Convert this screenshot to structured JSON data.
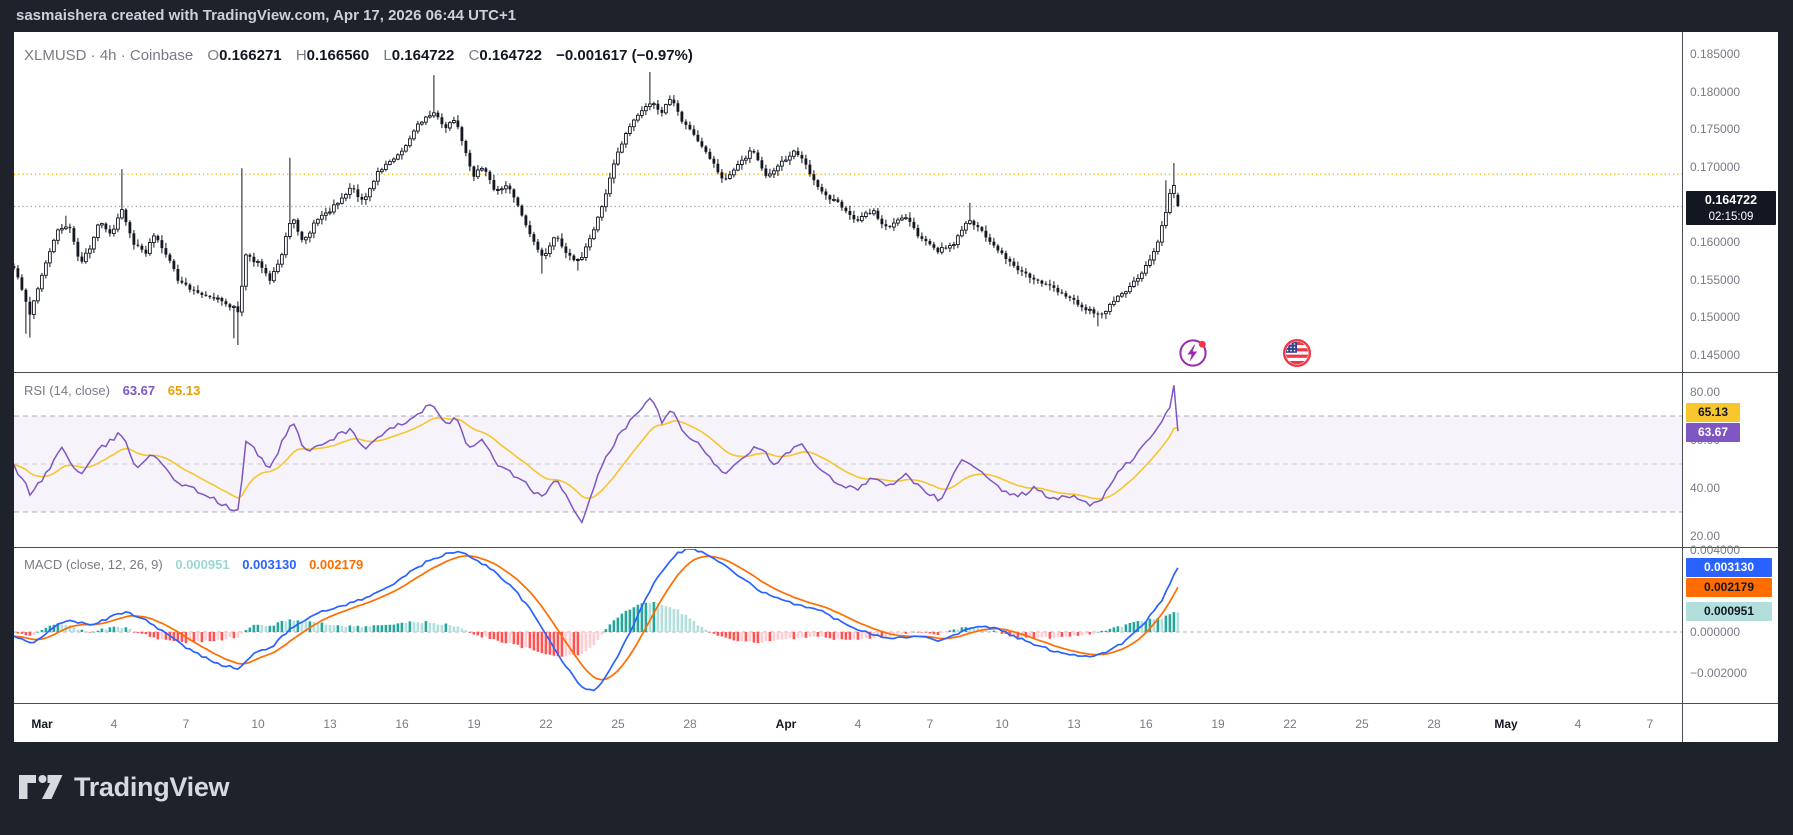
{
  "header": {
    "title": "sasmaishera created with TradingView.com, Apr 17, 2026 06:44 UTC+1"
  },
  "symbol_legend": {
    "title": "XLMUSD · 4h · Coinbase",
    "ohlc": [
      {
        "k": "O",
        "v": "0.166271"
      },
      {
        "k": "H",
        "v": "0.166560"
      },
      {
        "k": "L",
        "v": "0.164722"
      },
      {
        "k": "C",
        "v": "0.164722"
      }
    ],
    "change": "−0.001617 (−0.97%)"
  },
  "price_axis": {
    "labels": [
      {
        "t": "0.185000",
        "v": 0.185
      },
      {
        "t": "0.180000",
        "v": 0.18
      },
      {
        "t": "0.175000",
        "v": 0.175
      },
      {
        "t": "0.170000",
        "v": 0.17
      },
      {
        "t": "0.165000",
        "v": 0.165
      },
      {
        "t": "0.160000",
        "v": 0.16
      },
      {
        "t": "0.155000",
        "v": 0.155
      },
      {
        "t": "0.150000",
        "v": 0.15
      },
      {
        "t": "0.145000",
        "v": 0.145
      }
    ],
    "last_price_badge": {
      "price": "0.164722",
      "countdown": "02:15:09"
    }
  },
  "rsi": {
    "legend_name": "RSI (14, close)",
    "value": "63.67",
    "ma_value": "65.13",
    "axis": [
      {
        "t": "80.00",
        "v": 80
      },
      {
        "t": "60.00",
        "v": 60
      },
      {
        "t": "40.00",
        "v": 40
      },
      {
        "t": "20.00",
        "v": 20
      }
    ]
  },
  "macd": {
    "legend_name": "MACD (close, 12, 26, 9)",
    "hist_value": "0.000951",
    "macd_value": "0.003130",
    "signal_value": "0.002179",
    "axis": [
      {
        "t": "0.004000",
        "v": 0.004
      },
      {
        "t": "0.002000",
        "v": 0.002
      },
      {
        "t": "0.000000",
        "v": 0
      },
      {
        "t": "−0.002000",
        "v": -0.002
      }
    ]
  },
  "time_axis": {
    "ticks": [
      {
        "l": "Mar",
        "d": 0,
        "m": true
      },
      {
        "l": "4",
        "d": 3
      },
      {
        "l": "7",
        "d": 6
      },
      {
        "l": "10",
        "d": 9
      },
      {
        "l": "13",
        "d": 12
      },
      {
        "l": "16",
        "d": 15
      },
      {
        "l": "19",
        "d": 18
      },
      {
        "l": "22",
        "d": 21
      },
      {
        "l": "25",
        "d": 24
      },
      {
        "l": "28",
        "d": 27
      },
      {
        "l": "Apr",
        "d": 31,
        "m": true
      },
      {
        "l": "4",
        "d": 34
      },
      {
        "l": "7",
        "d": 37
      },
      {
        "l": "10",
        "d": 40
      },
      {
        "l": "13",
        "d": 43
      },
      {
        "l": "16",
        "d": 46
      },
      {
        "l": "19",
        "d": 49
      },
      {
        "l": "22",
        "d": 52
      },
      {
        "l": "25",
        "d": 55
      },
      {
        "l": "28",
        "d": 58
      },
      {
        "l": "May",
        "d": 61,
        "m": true
      },
      {
        "l": "4",
        "d": 64
      },
      {
        "l": "7",
        "d": 67
      }
    ]
  },
  "footer": {
    "brand": "TradingView"
  },
  "colors": {
    "frame_bg": "#1e222b",
    "panel_bg": "#ffffff",
    "divider": "#4a4e57",
    "text_gray": "#787b86",
    "text_dark": "#131722",
    "candle_up_fill": "#ffffff",
    "candle_down_fill": "#131722",
    "candle_stroke": "#131722",
    "rsi_line": "#7e57c2",
    "rsi_ma_line": "#f7c52c",
    "rsi_band_fill": "#7e57c2",
    "macd_line": "#2962ff",
    "signal_line": "#ff6d00",
    "hist_grow_above": "#26a69a",
    "hist_fall_above": "#b2dfdb",
    "hist_fall_below": "#ff5252",
    "hist_grow_below": "#ffcdd2",
    "alert_line": "#f0c421",
    "current_price_line": "#9598a1",
    "badge_black": "#131722",
    "badge_yellow": "#f7c52c",
    "badge_purple": "#7e57c2",
    "badge_blue": "#2962ff",
    "badge_orange": "#ff6d00",
    "badge_teal": "#b2dfdb"
  },
  "chart_data": {
    "type": "candlestick+indicators",
    "symbol": "XLMUSD",
    "interval": "4h",
    "exchange": "Coinbase",
    "price_panel": {
      "ylim": [
        0.1426,
        0.1879
      ],
      "grid_labels": [
        0.185,
        0.18,
        0.175,
        0.17,
        0.165,
        0.16,
        0.155,
        0.15,
        0.145
      ],
      "alert_line_price": 0.169,
      "last_bar": {
        "open": 0.166271,
        "high": 0.16656,
        "low": 0.164722,
        "close": 0.164722,
        "change": -0.001617,
        "change_pct": -0.97,
        "countdown": "02:15:09"
      },
      "path_days_since_mar1_vs_close": [
        [
          -1.2,
          0.1568
        ],
        [
          -0.8,
          0.1535
        ],
        [
          -0.5,
          0.1502
        ],
        [
          -0.1,
          0.1545
        ],
        [
          0.6,
          0.1612
        ],
        [
          1.1,
          0.1625
        ],
        [
          1.6,
          0.1572
        ],
        [
          2.0,
          0.1592
        ],
        [
          2.4,
          0.1632
        ],
        [
          2.9,
          0.1605
        ],
        [
          3.3,
          0.1648
        ],
        [
          3.8,
          0.1598
        ],
        [
          4.3,
          0.1585
        ],
        [
          4.7,
          0.161
        ],
        [
          5.2,
          0.1582
        ],
        [
          5.7,
          0.1548
        ],
        [
          6.3,
          0.1536
        ],
        [
          6.9,
          0.1528
        ],
        [
          7.5,
          0.1522
        ],
        [
          8.2,
          0.1508
        ],
        [
          8.5,
          0.1582
        ],
        [
          9.0,
          0.1572
        ],
        [
          9.5,
          0.1548
        ],
        [
          10.0,
          0.1585
        ],
        [
          10.4,
          0.1635
        ],
        [
          10.9,
          0.1598
        ],
        [
          11.4,
          0.1628
        ],
        [
          12.0,
          0.1642
        ],
        [
          12.5,
          0.1658
        ],
        [
          12.9,
          0.1672
        ],
        [
          13.4,
          0.1652
        ],
        [
          14.0,
          0.1692
        ],
        [
          14.5,
          0.1706
        ],
        [
          15.0,
          0.1722
        ],
        [
          15.5,
          0.1748
        ],
        [
          16.0,
          0.1768
        ],
        [
          16.4,
          0.1772
        ],
        [
          16.8,
          0.1752
        ],
        [
          17.2,
          0.1765
        ],
        [
          17.6,
          0.1722
        ],
        [
          18.0,
          0.1688
        ],
        [
          18.4,
          0.1702
        ],
        [
          18.9,
          0.1665
        ],
        [
          19.4,
          0.1678
        ],
        [
          19.9,
          0.1642
        ],
        [
          20.4,
          0.1605
        ],
        [
          20.9,
          0.1578
        ],
        [
          21.4,
          0.1612
        ],
        [
          21.9,
          0.1582
        ],
        [
          22.4,
          0.1575
        ],
        [
          22.9,
          0.1608
        ],
        [
          23.4,
          0.1655
        ],
        [
          23.9,
          0.1712
        ],
        [
          24.4,
          0.1748
        ],
        [
          24.9,
          0.1772
        ],
        [
          25.4,
          0.1788
        ],
        [
          25.8,
          0.1772
        ],
        [
          26.2,
          0.1792
        ],
        [
          26.7,
          0.1758
        ],
        [
          27.2,
          0.1742
        ],
        [
          27.8,
          0.1712
        ],
        [
          28.4,
          0.1682
        ],
        [
          29.0,
          0.1702
        ],
        [
          29.6,
          0.1722
        ],
        [
          30.2,
          0.1688
        ],
        [
          30.8,
          0.1705
        ],
        [
          31.4,
          0.1722
        ],
        [
          32.0,
          0.1692
        ],
        [
          32.6,
          0.1662
        ],
        [
          33.2,
          0.1652
        ],
        [
          33.9,
          0.1628
        ],
        [
          34.6,
          0.1642
        ],
        [
          35.2,
          0.1618
        ],
        [
          35.9,
          0.1636
        ],
        [
          36.6,
          0.1605
        ],
        [
          37.3,
          0.1588
        ],
        [
          38.0,
          0.1598
        ],
        [
          38.6,
          0.1632
        ],
        [
          39.2,
          0.1612
        ],
        [
          39.9,
          0.1588
        ],
        [
          40.6,
          0.1562
        ],
        [
          41.3,
          0.1552
        ],
        [
          42.0,
          0.1542
        ],
        [
          42.7,
          0.1528
        ],
        [
          43.4,
          0.1512
        ],
        [
          44.1,
          0.1502
        ],
        [
          44.7,
          0.1522
        ],
        [
          45.3,
          0.1538
        ],
        [
          45.9,
          0.1562
        ],
        [
          46.4,
          0.1592
        ],
        [
          46.9,
          0.1645
        ],
        [
          47.1,
          0.1688
        ],
        [
          47.2,
          0.1665
        ],
        [
          47.333,
          0.164722
        ]
      ],
      "wick_events": [
        [
          -0.6,
          "l",
          0.1478
        ],
        [
          -0.45,
          "l",
          0.1473
        ],
        [
          1.0,
          "h",
          0.1635
        ],
        [
          3.3,
          "h",
          0.1697
        ],
        [
          8.05,
          "l",
          0.1472
        ],
        [
          8.2,
          "l",
          0.1463
        ],
        [
          8.4,
          "h",
          0.1698
        ],
        [
          10.35,
          "h",
          0.1712
        ],
        [
          16.35,
          "h",
          0.1822
        ],
        [
          20.9,
          "l",
          0.1558
        ],
        [
          22.3,
          "l",
          0.1562
        ],
        [
          25.35,
          "h",
          0.1826
        ],
        [
          38.6,
          "h",
          0.1652
        ],
        [
          44.0,
          "l",
          0.1488
        ],
        [
          46.9,
          "h",
          0.1682
        ],
        [
          47.1,
          "h",
          0.1705
        ]
      ]
    },
    "rsi_panel": {
      "length": 14,
      "source": "close",
      "current": 63.67,
      "ma_current": 65.13,
      "band": [
        30,
        70
      ],
      "grid": [
        80,
        60,
        40,
        20
      ],
      "ylim_visible": [
        14,
        87
      ],
      "path_days_vs_rsi": [
        [
          -1.2,
          50
        ],
        [
          -0.5,
          38
        ],
        [
          0.2,
          46
        ],
        [
          0.8,
          57
        ],
        [
          1.6,
          45
        ],
        [
          2.4,
          56
        ],
        [
          3.3,
          63
        ],
        [
          3.9,
          49
        ],
        [
          4.7,
          54
        ],
        [
          5.7,
          42
        ],
        [
          6.9,
          37
        ],
        [
          7.7,
          32
        ],
        [
          8.2,
          30
        ],
        [
          8.5,
          60
        ],
        [
          9.5,
          48
        ],
        [
          10.4,
          68
        ],
        [
          11.0,
          55
        ],
        [
          12.0,
          60
        ],
        [
          12.9,
          65
        ],
        [
          13.4,
          56
        ],
        [
          14.5,
          64
        ],
        [
          15.5,
          70
        ],
        [
          16.2,
          75
        ],
        [
          16.8,
          66
        ],
        [
          17.2,
          70
        ],
        [
          17.8,
          56
        ],
        [
          18.4,
          61
        ],
        [
          18.9,
          50
        ],
        [
          19.9,
          44
        ],
        [
          20.9,
          35
        ],
        [
          21.4,
          45
        ],
        [
          22.2,
          29
        ],
        [
          22.5,
          26
        ],
        [
          23.1,
          44
        ],
        [
          23.9,
          60
        ],
        [
          24.9,
          72
        ],
        [
          25.4,
          79
        ],
        [
          25.8,
          67
        ],
        [
          26.2,
          73
        ],
        [
          26.7,
          63
        ],
        [
          27.5,
          57
        ],
        [
          28.4,
          46
        ],
        [
          29.3,
          54
        ],
        [
          29.9,
          58
        ],
        [
          30.5,
          49
        ],
        [
          31.1,
          55
        ],
        [
          31.7,
          58
        ],
        [
          32.3,
          48
        ],
        [
          33.0,
          43
        ],
        [
          33.9,
          39
        ],
        [
          34.6,
          45
        ],
        [
          35.2,
          40
        ],
        [
          35.9,
          46
        ],
        [
          36.8,
          38
        ],
        [
          37.5,
          35
        ],
        [
          38.3,
          52
        ],
        [
          38.9,
          48
        ],
        [
          39.7,
          41
        ],
        [
          40.6,
          36
        ],
        [
          41.4,
          40
        ],
        [
          42.2,
          35
        ],
        [
          43.0,
          37
        ],
        [
          43.6,
          33
        ],
        [
          44.2,
          36
        ],
        [
          44.9,
          47
        ],
        [
          45.6,
          54
        ],
        [
          46.2,
          61
        ],
        [
          46.7,
          68
        ],
        [
          47.0,
          74
        ],
        [
          47.15,
          84
        ],
        [
          47.333,
          63.67
        ]
      ]
    },
    "macd_panel": {
      "params": [
        12,
        26,
        9
      ],
      "macd": 0.00313,
      "signal": 0.002179,
      "histogram": 0.000951,
      "grid": [
        0.004,
        0.002,
        0,
        -0.002
      ],
      "macd_path_days_vs_value": [
        [
          -1.2,
          -0.0002
        ],
        [
          -0.4,
          -0.0006
        ],
        [
          0.4,
          0.0002
        ],
        [
          1.2,
          0.0006
        ],
        [
          2.0,
          0.0003
        ],
        [
          2.8,
          0.0007
        ],
        [
          3.5,
          0.001
        ],
        [
          4.3,
          0.0006
        ],
        [
          5.1,
          0
        ],
        [
          5.9,
          -0.0007
        ],
        [
          6.7,
          -0.0012
        ],
        [
          7.5,
          -0.0016
        ],
        [
          8.2,
          -0.0018
        ],
        [
          8.9,
          -0.001
        ],
        [
          9.6,
          -0.0007
        ],
        [
          10.4,
          0.0002
        ],
        [
          11.2,
          0.0008
        ],
        [
          12.0,
          0.0011
        ],
        [
          12.8,
          0.0014
        ],
        [
          13.6,
          0.0017
        ],
        [
          14.4,
          0.0022
        ],
        [
          15.2,
          0.0028
        ],
        [
          16.0,
          0.0034
        ],
        [
          16.8,
          0.0038
        ],
        [
          17.4,
          0.0039
        ],
        [
          18.0,
          0.0036
        ],
        [
          18.8,
          0.003
        ],
        [
          19.6,
          0.0022
        ],
        [
          20.4,
          0.001
        ],
        [
          21.2,
          -0.0005
        ],
        [
          21.9,
          -0.0018
        ],
        [
          22.5,
          -0.0027
        ],
        [
          23.0,
          -0.0029
        ],
        [
          23.6,
          -0.002
        ],
        [
          24.3,
          -0.0005
        ],
        [
          25.0,
          0.0013
        ],
        [
          25.7,
          0.0028
        ],
        [
          26.4,
          0.0038
        ],
        [
          27.0,
          0.0041
        ],
        [
          27.7,
          0.0038
        ],
        [
          28.5,
          0.0032
        ],
        [
          29.3,
          0.0025
        ],
        [
          30.1,
          0.0019
        ],
        [
          30.9,
          0.0015
        ],
        [
          31.7,
          0.0013
        ],
        [
          32.5,
          0.001
        ],
        [
          33.3,
          0.0005
        ],
        [
          34.1,
          0.0001
        ],
        [
          34.9,
          -0.0002
        ],
        [
          35.7,
          -0.0003
        ],
        [
          36.5,
          -0.0002
        ],
        [
          37.3,
          -0.0004
        ],
        [
          38.1,
          -0.0001
        ],
        [
          38.9,
          0.0003
        ],
        [
          39.7,
          0.0002
        ],
        [
          40.5,
          -0.0002
        ],
        [
          41.3,
          -0.0006
        ],
        [
          42.1,
          -0.0009
        ],
        [
          42.9,
          -0.0011
        ],
        [
          43.7,
          -0.0012
        ],
        [
          44.5,
          -0.0009
        ],
        [
          45.2,
          -0.0004
        ],
        [
          45.9,
          0.0004
        ],
        [
          46.6,
          0.0014
        ],
        [
          47.1,
          0.0026
        ],
        [
          47.333,
          0.00313
        ]
      ]
    }
  }
}
